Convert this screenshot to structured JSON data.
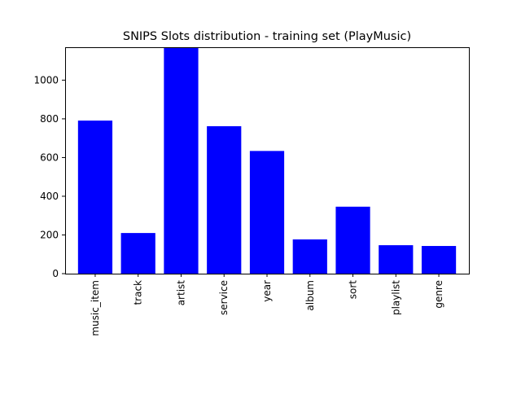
{
  "chart_data": {
    "type": "bar",
    "title": "SNIPS Slots distribution - training set (PlayMusic)",
    "xlabel": "",
    "ylabel": "",
    "categories": [
      "music_item",
      "track",
      "artist",
      "service",
      "year",
      "album",
      "sort",
      "playlist",
      "genre"
    ],
    "values": [
      791,
      210,
      1170,
      762,
      634,
      177,
      346,
      147,
      143
    ],
    "ylim": [
      0,
      1170
    ],
    "yticks": [
      0,
      200,
      400,
      600,
      800,
      1000
    ],
    "bar_color": "#0000ff",
    "grid": false,
    "legend": "none"
  }
}
